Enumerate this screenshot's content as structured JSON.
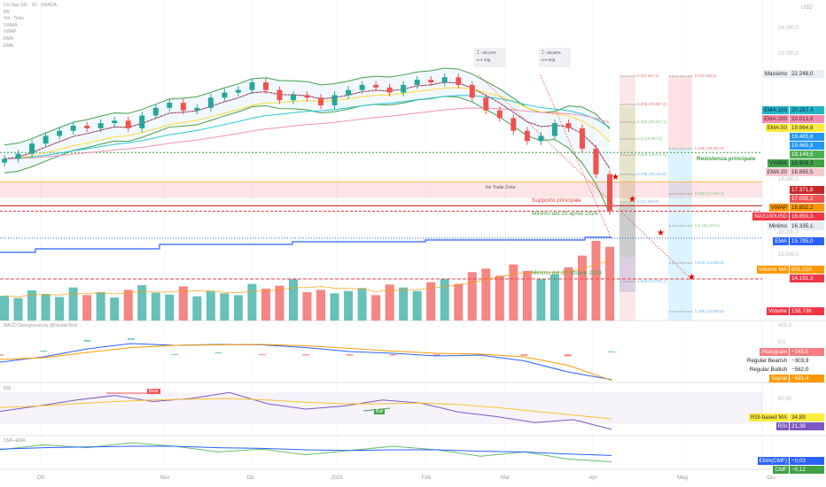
{
  "header": {
    "symbol": "US Nas 100 · 1D · OANDA",
    "indicators": [
      "BB",
      "Vol · Ticks",
      "VWMA",
      "VWAP",
      "EMA",
      "EMA"
    ],
    "currency": "USD"
  },
  "chart_data": {
    "type": "candlestick",
    "x_ticks": [
      "Ott",
      "Nov",
      "Dic",
      "2025",
      "Feb",
      "Mar",
      "Apr",
      "Mag",
      "Giu"
    ],
    "y_ticks": [
      "24.000,0",
      "23.000,0",
      "18.000,0",
      "16.000,0",
      "15.000,0"
    ],
    "closes": [
      18900,
      19100,
      19500,
      19800,
      20000,
      20200,
      20100,
      20300,
      20400,
      20100,
      20600,
      20900,
      21100,
      20800,
      20900,
      21300,
      21500,
      21600,
      21900,
      21600,
      21200,
      21400,
      21300,
      21000,
      21400,
      21600,
      21800,
      21700,
      21500,
      21800,
      22000,
      21900,
      22100,
      21800,
      21300,
      20800,
      20500,
      20000,
      19600,
      19800,
      20300,
      20100,
      19300,
      18300,
      16850
    ],
    "volumes_k": [
      420,
      380,
      510,
      450,
      400,
      560,
      430,
      480,
      390,
      520,
      600,
      470,
      440,
      580,
      410,
      500,
      460,
      430,
      620,
      540,
      590,
      700,
      480,
      520,
      460,
      500,
      550,
      430,
      610,
      560,
      500,
      650,
      700,
      620,
      820,
      880,
      760,
      950,
      840,
      700,
      780,
      900,
      1100,
      1350,
      1250
    ],
    "macd": [
      -180,
      -60,
      120,
      240,
      200,
      220,
      210,
      150,
      60,
      20,
      -40,
      -20,
      -150,
      -400,
      -575
    ],
    "macd_signal": [
      -120,
      -80,
      40,
      150,
      200,
      210,
      220,
      190,
      130,
      70,
      20,
      0,
      -60,
      -250,
      -591
    ],
    "rsi": [
      45,
      52,
      60,
      66,
      58,
      62,
      70,
      55,
      48,
      52,
      60,
      56,
      44,
      38,
      30,
      34,
      21
    ],
    "rsi_ma": [
      50,
      52,
      55,
      58,
      60,
      61,
      62,
      60,
      57,
      55,
      55,
      56,
      54,
      50,
      45,
      40,
      35
    ],
    "cmf": [
      0.05,
      0.12,
      0.08,
      0.15,
      0.1,
      0.02,
      0.06,
      -0.02,
      0.04,
      0.1,
      0.05,
      -0.04,
      0.02,
      -0.08,
      -0.12
    ],
    "cmf_ema": [
      0.06,
      0.08,
      0.09,
      0.1,
      0.1,
      0.08,
      0.07,
      0.05,
      0.04,
      0.05,
      0.05,
      0.03,
      0.02,
      -0.01,
      -0.03
    ]
  },
  "measures": [
    {
      "pct": "−28,43%",
      "days": "44g"
    },
    {
      "pct": "−35,66%",
      "days": "50g"
    }
  ],
  "annotations": {
    "no_trade": "No Trade Zone",
    "support": "Supporto principale",
    "resistance": "Resistenza principale",
    "min_apr": "Minimo del 19 aprile 2024",
    "min_oct": "Minimo del 27 ottobre 2023",
    "bear": "Bear",
    "bull": "Bull"
  },
  "fib_left": [
    "0 (22.167,4)",
    "0,236 (20.887,2)",
    "0,382 (20.257,1)",
    "0,5 (19.667,5)",
    "0,618 (19.076,8)",
    "0,786 (18.236,8)",
    "1 (17.166,8)",
    "1,618 (14.076,1)"
  ],
  "fib_right": [
    "0 (22.169,2)",
    "0,236 (19.387,8)",
    "0,382 (17.663,2)",
    "0,5 (16.276,5)",
    "0,618 (14.888,8)",
    "0,786 (12.905,8)"
  ],
  "scale_tags": [
    {
      "name": "Massimo",
      "value": "22.248,0",
      "color": "#e8ecf3",
      "text": "#333",
      "price": 22248
    },
    {
      "name": "EMA:100",
      "value": "20.287,4",
      "color": "#22b5c8",
      "text": "#123",
      "price": 20287
    },
    {
      "name": "EMA:200",
      "value": "20.013,6",
      "color": "#f48fb1",
      "text": "#622",
      "price": 20013
    },
    {
      "name": "EMA:50",
      "value": "19.864,8",
      "color": "#ffeb3b",
      "text": "#333",
      "price": 19864
    },
    {
      "name": "",
      "value": "19.465,8",
      "color": "#2196f3",
      "text": "#fff",
      "price": 19500
    },
    {
      "name": "",
      "value": "19.465,8",
      "color": "#2196f3",
      "text": "#fff",
      "price": 19180
    },
    {
      "name": "",
      "value": "19.149,5",
      "color": "#4caf50",
      "text": "#fff",
      "price": 18860
    },
    {
      "name": "VWMA",
      "value": "18.909,3",
      "color": "#43a047",
      "text": "#123",
      "price": 18540
    },
    {
      "name": "EMA:20",
      "value": "18.865,5",
      "color": "#f8c8cf",
      "text": "#333",
      "price": 18220
    },
    {
      "name": "",
      "value": "17.371,8",
      "color": "#c62828",
      "text": "#fff",
      "price": 17371
    },
    {
      "name": "",
      "value": "17.055,2",
      "color": "#ef5350",
      "text": "#fff",
      "price": 17055
    },
    {
      "name": "VWAP",
      "value": "16.852,2",
      "color": "#ff9800",
      "text": "#222",
      "price": 16740
    },
    {
      "name": "NAS100USD",
      "value": "16.850,3",
      "color": "#f23645",
      "text": "#fff",
      "price": 16425
    },
    {
      "name": "Minimo",
      "value": "16.335,1",
      "color": "#e8ecf3",
      "text": "#333",
      "price": 15950
    },
    {
      "name": "EMA",
      "value": "15.795,0",
      "color": "#2962ff",
      "text": "#fff",
      "price": 15410
    },
    {
      "name": "Volume MA",
      "value": "601,51K",
      "color": "#ff9800",
      "text": "#fff",
      "price": 14540
    },
    {
      "name": "",
      "value": "14.191,3",
      "color": "#f23645",
      "text": "#fff",
      "price": 14210
    },
    {
      "name": "Volume",
      "value": "158,73K",
      "color": "#f23645",
      "text": "#fff",
      "price": 13030
    }
  ],
  "macd_pane": {
    "title": "MACD Divergences by @DoubleTech",
    "ticks": [
      "400,0",
      "0,0"
    ],
    "tags": [
      {
        "name": "Histogram",
        "value": "−245,5",
        "color": "#f77c80"
      },
      {
        "name": "Regular Bearish",
        "value": "−303,9",
        "color": ""
      },
      {
        "name": "Regular Bullish",
        "value": "−562,0",
        "color": ""
      },
      {
        "name": "Signal",
        "value": "−591,4",
        "color": "#ff9800"
      }
    ]
  },
  "rsi_pane": {
    "title": "RSI",
    "ticks": [
      "60,00"
    ],
    "tags": [
      {
        "name": "RSI-based MA",
        "value": "34,89",
        "color": "#ffeb3b"
      },
      {
        "name": "RSI",
        "value": "21,38",
        "color": "#7e57c2"
      }
    ]
  },
  "cmf_pane": {
    "title": "CMF+EMA",
    "tags": [
      {
        "name": "EMA(CMF)",
        "value": "−0,03",
        "color": "#2962ff"
      },
      {
        "name": "CMF",
        "value": "−0,12",
        "color": "#43a047"
      }
    ]
  }
}
